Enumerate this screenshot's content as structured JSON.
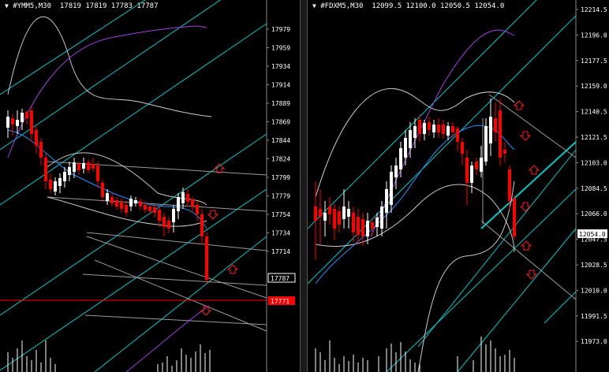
{
  "charts": [
    {
      "symbol": "#YMM5,M30",
      "ohlc": "17819 17819 17783 17787",
      "axis_labels": [
        "17979",
        "17959",
        "17934",
        "17914",
        "17889",
        "17869",
        "17844",
        "17824",
        "17799",
        "17779",
        "17754",
        "17734",
        "17714"
      ],
      "current_price": "17787",
      "ref_price": "17771",
      "colors": {
        "bull": "#ffffff",
        "bear": "#ff0000",
        "channel": "#00ffff",
        "band": "#c0c0c0",
        "ma": "#1e90ff",
        "upper": "#9932cc",
        "line": "#ff0000"
      }
    },
    {
      "symbol": "#FDXM5,M30",
      "ohlc": "12099.5 12100.0 12050.5 12054.0",
      "axis_labels": [
        "12214.5",
        "12196.0",
        "12177.5",
        "12159.0",
        "12140.5",
        "12121.5",
        "12103.0",
        "12084.5",
        "12066.0",
        "12047.5",
        "12028.5",
        "12010.0",
        "11991.5",
        "11973.0"
      ],
      "current_price": "12054.0",
      "colors": {
        "bull": "#ffffff",
        "bear": "#ff0000",
        "channel": "#00ffff",
        "band": "#c0c0c0",
        "ma": "#1e90ff",
        "upper": "#9932cc"
      }
    }
  ]
}
